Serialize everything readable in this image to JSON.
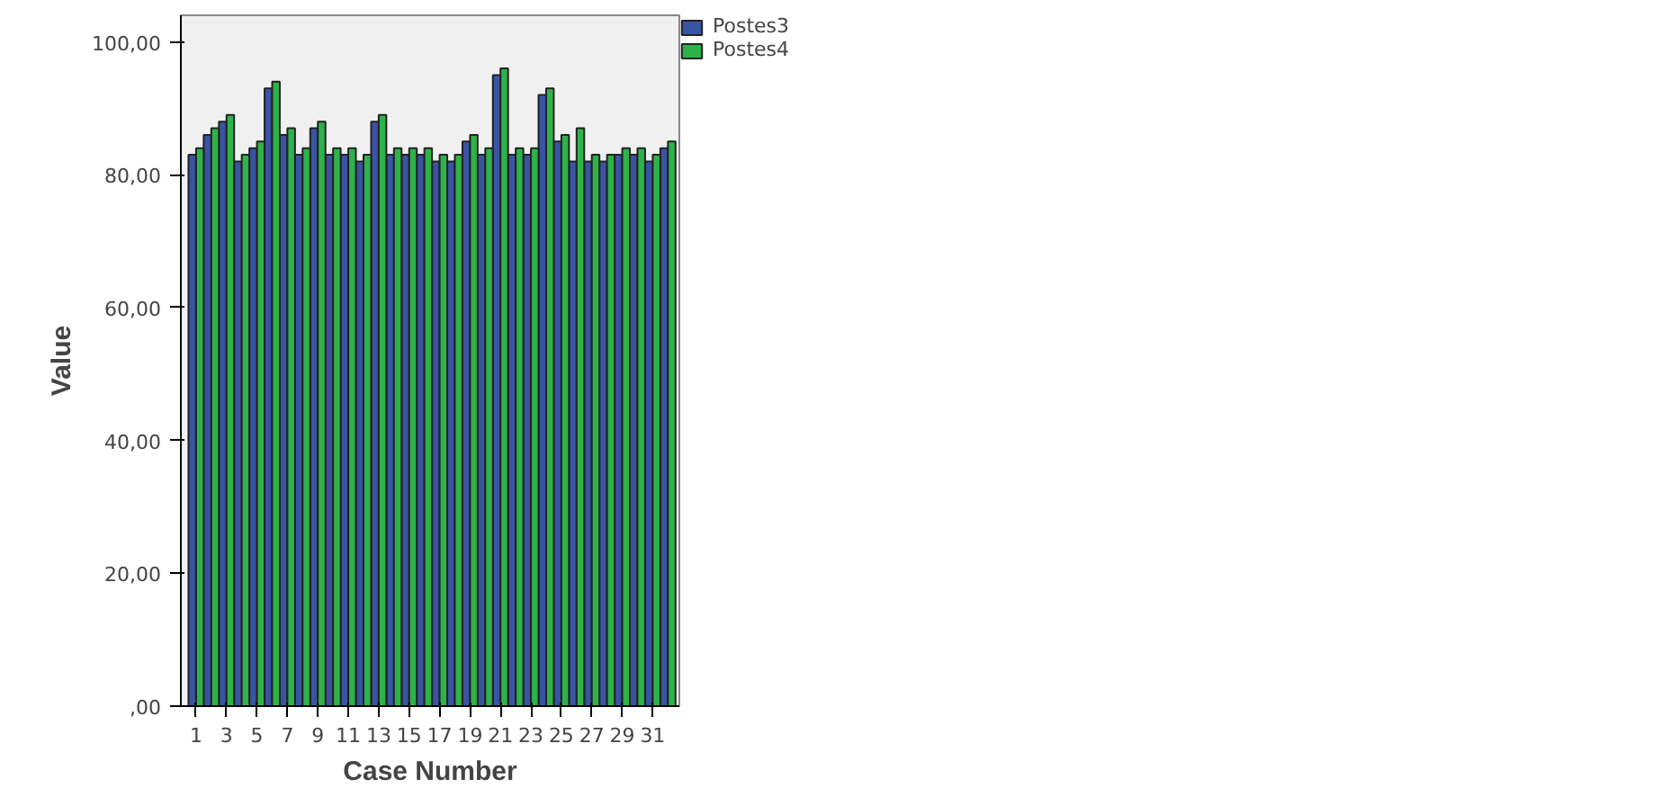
{
  "chart_data": {
    "type": "bar",
    "xlabel": "Case Number",
    "ylabel": "Value",
    "x": [
      1,
      2,
      3,
      4,
      5,
      6,
      7,
      8,
      9,
      10,
      11,
      12,
      13,
      14,
      15,
      16,
      17,
      18,
      19,
      20,
      21,
      22,
      23,
      24,
      25,
      26,
      27,
      28,
      29,
      30,
      31,
      32
    ],
    "series": [
      {
        "name": "Postes3",
        "color": "#3a54a4",
        "values": [
          83,
          86,
          88,
          82,
          84,
          93,
          86,
          83,
          87,
          83,
          83,
          82,
          88,
          83,
          83,
          83,
          82,
          82,
          85,
          83,
          95,
          83,
          83,
          92,
          85,
          82,
          82,
          82,
          83,
          83,
          82,
          84
        ]
      },
      {
        "name": "Postes4",
        "color": "#2db34a",
        "values": [
          84,
          87,
          89,
          83,
          85,
          94,
          87,
          84,
          88,
          84,
          84,
          83,
          89,
          84,
          84,
          84,
          83,
          83,
          86,
          84,
          96,
          84,
          84,
          93,
          86,
          87,
          83,
          83,
          84,
          84,
          83,
          85
        ]
      }
    ],
    "xlim": [
      0,
      32.75
    ],
    "xticks": [
      1,
      3,
      5,
      7,
      9,
      11,
      13,
      15,
      17,
      19,
      21,
      23,
      25,
      27,
      29,
      31
    ],
    "ylim": [
      0,
      104
    ],
    "yticks": [
      {
        "value": 0,
        "label": ",00"
      },
      {
        "value": 20,
        "label": "20,00"
      },
      {
        "value": 40,
        "label": "40,00"
      },
      {
        "value": 60,
        "label": "60,00"
      },
      {
        "value": 80,
        "label": "80,00"
      },
      {
        "value": 100,
        "label": "100,00"
      }
    ],
    "grid": false,
    "legend": "top right"
  }
}
